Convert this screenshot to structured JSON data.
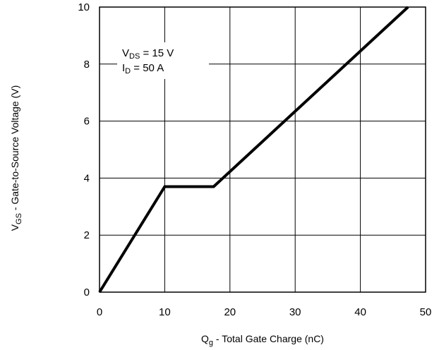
{
  "chart_data": {
    "type": "line",
    "title": "",
    "xlabel": {
      "main": "Q",
      "sub": "g",
      "rest": "  -  Total Gate Charge (nC)"
    },
    "ylabel": {
      "main": "V",
      "sub": "GS",
      "rest": "  -  Gate-to-Source Voltage (V)"
    },
    "xlim": [
      0,
      50
    ],
    "ylim": [
      0,
      10
    ],
    "xticks": [
      0,
      10,
      20,
      30,
      40,
      50
    ],
    "yticks": [
      0,
      2,
      4,
      6,
      8,
      10
    ],
    "grid": true,
    "series": [
      {
        "x": [
          0,
          10,
          17.5,
          47.3
        ],
        "y": [
          0,
          3.7,
          3.7,
          10
        ]
      }
    ],
    "annotations": [
      {
        "main": "V",
        "sub": "DS",
        "rest": " = 15 V"
      },
      {
        "main": "I",
        "sub": "D",
        "rest": " = 50 A"
      }
    ]
  }
}
